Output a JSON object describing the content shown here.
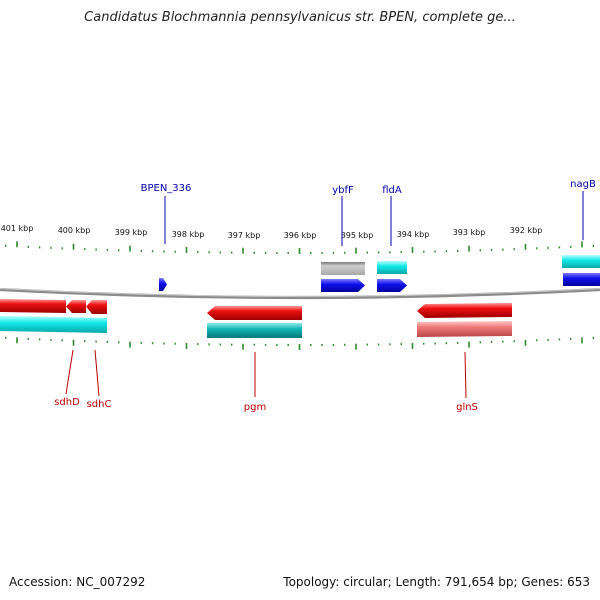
{
  "title": "Candidatus Blochmannia pennsylvanicus str. BPEN, complete ge...",
  "footer": {
    "accession": "Accession: NC_007292",
    "topology": "Topology: circular; Length: 791,654 bp; Genes: 653"
  },
  "colors": {
    "backbone": "#8a8a8a",
    "tick": "#2e8b2e",
    "forward_label": "#0000aa",
    "reverse_label": "#bb0000",
    "gene_red": "#ee1111",
    "gene_pink": "#ee7777",
    "gene_cyan": "#11e0e0",
    "gene_teal": "#11b0b0",
    "gene_blue": "#1111ee",
    "gene_gray": "#b5b5b5"
  },
  "kbp_labels": [
    "401 kbp",
    "400 kbp",
    "399 kbp",
    "398 kbp",
    "397 kbp",
    "396 kbp",
    "395 kbp",
    "394 kbp",
    "393 kbp",
    "392 kbp"
  ],
  "forward_genes": [
    {
      "name": "BPEN_336"
    },
    {
      "name": "ybfF"
    },
    {
      "name": "fldA"
    },
    {
      "name": "nagB"
    }
  ],
  "reverse_genes": [
    {
      "name": "sdhD"
    },
    {
      "name": "sdhC"
    },
    {
      "name": "pgm"
    },
    {
      "name": "glnS"
    }
  ]
}
